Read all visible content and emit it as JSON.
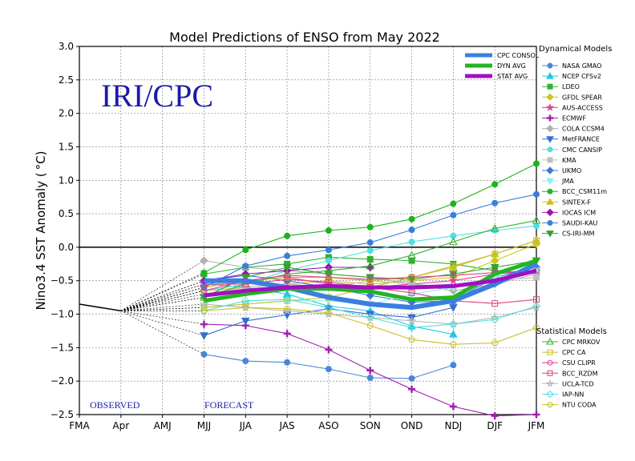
{
  "chart_data": {
    "type": "line",
    "title": "Model Predictions of ENSO from May 2022",
    "ylabel": "Nino3.4 SST Anomaly ( °C)",
    "xlabel": "",
    "categories": [
      "FMA",
      "Apr",
      "AMJ",
      "MJJ",
      "JJA",
      "JAS",
      "ASO",
      "SON",
      "OND",
      "NDJ",
      "DJF",
      "JFM"
    ],
    "ylim": [
      -2.5,
      3.0
    ],
    "yticks": [
      "3.0",
      "2.5",
      "2.0",
      "1.5",
      "1.0",
      "0.5",
      "0.0",
      "−0.5",
      "−1.0",
      "−1.5",
      "−2.0",
      "−2.5"
    ],
    "grid": true,
    "watermark": "IRI/CPC",
    "observed_label": "OBSERVED",
    "forecast_label": "FORECAST",
    "observed": [
      -0.85,
      -0.95
    ],
    "averages": [
      {
        "name": "CPC CONSOL",
        "color": "#3a7fe0",
        "values": [
          null,
          null,
          null,
          -0.5,
          -0.5,
          -0.6,
          -0.75,
          -0.85,
          -0.9,
          -0.8,
          -0.55,
          -0.25
        ]
      },
      {
        "name": "DYN AVG",
        "color": "#22b522",
        "values": [
          null,
          null,
          null,
          -0.8,
          -0.7,
          -0.62,
          -0.62,
          -0.66,
          -0.78,
          -0.75,
          -0.4,
          -0.2
        ]
      },
      {
        "name": "STAT AVG",
        "color": "#a010c0",
        "values": [
          null,
          null,
          null,
          -0.72,
          -0.65,
          -0.6,
          -0.58,
          -0.6,
          -0.6,
          -0.58,
          -0.5,
          -0.35
        ]
      }
    ],
    "legend_dynamical_title": "Dynamical Models",
    "legend_statistical_title": "Statistical Models",
    "dynamical_models": [
      {
        "name": "NASA GMAO",
        "color": "#4a86d8",
        "marker": "circle",
        "values": [
          null,
          null,
          null,
          -1.6,
          -1.7,
          -1.72,
          -1.82,
          -1.95,
          -1.96,
          -1.76,
          null,
          null
        ]
      },
      {
        "name": "NCEP CFSv2",
        "color": "#20c8e8",
        "marker": "triangle-up",
        "values": [
          null,
          null,
          null,
          -0.55,
          -0.6,
          -0.7,
          -0.88,
          -0.95,
          -1.18,
          -1.3,
          null,
          null
        ]
      },
      {
        "name": "LDEO",
        "color": "#30b030",
        "marker": "square",
        "values": [
          null,
          null,
          null,
          -0.4,
          -0.3,
          -0.25,
          -0.15,
          -0.18,
          -0.2,
          -0.25,
          -0.35,
          -0.4
        ]
      },
      {
        "name": "GFDL SPEAR",
        "color": "#c8c820",
        "marker": "diamond",
        "values": [
          null,
          null,
          null,
          -0.65,
          -0.6,
          -0.55,
          -0.5,
          -0.55,
          -0.5,
          -0.45,
          -0.2,
          0.05
        ]
      },
      {
        "name": "AUS-ACCESS",
        "color": "#e04090",
        "marker": "star",
        "values": [
          null,
          null,
          null,
          -0.6,
          -0.5,
          -0.45,
          -0.55,
          -0.6,
          -0.55,
          -0.5,
          -0.4,
          -0.35
        ]
      },
      {
        "name": "ECMWF",
        "color": "#a020b0",
        "marker": "plus",
        "values": [
          null,
          null,
          null,
          -1.15,
          -1.17,
          -1.29,
          -1.53,
          -1.84,
          -2.12,
          -2.38,
          -2.52,
          -2.5
        ]
      },
      {
        "name": "COLA CCSM4",
        "color": "#b0b0b0",
        "marker": "diamond",
        "values": [
          null,
          null,
          null,
          -0.2,
          -0.3,
          -0.35,
          -0.4,
          -0.45,
          -0.55,
          -0.65,
          -0.55,
          -0.4
        ]
      },
      {
        "name": "MetFRANCE",
        "color": "#3070d0",
        "marker": "triangle-down",
        "values": [
          null,
          null,
          null,
          -1.32,
          -1.1,
          -1.01,
          -0.92,
          -1.0,
          -1.05,
          -0.9,
          null,
          null
        ]
      },
      {
        "name": "CMC CANSIP",
        "color": "#50e0e0",
        "marker": "circle",
        "values": [
          null,
          null,
          null,
          -0.65,
          -0.55,
          -0.35,
          -0.2,
          -0.05,
          0.08,
          0.17,
          0.25,
          0.32
        ]
      },
      {
        "name": "KMA",
        "color": "#c0c0c0",
        "marker": "square",
        "values": [
          null,
          null,
          null,
          -0.7,
          -0.6,
          -0.55,
          -0.6,
          -0.5,
          -0.55,
          -0.6,
          -0.5,
          -0.45
        ]
      },
      {
        "name": "UKMO",
        "color": "#3a78d8",
        "marker": "diamond",
        "values": [
          null,
          null,
          null,
          -0.5,
          -0.42,
          -0.5,
          -0.6,
          -0.72,
          -0.82,
          -0.8,
          -0.45,
          -0.3
        ]
      },
      {
        "name": "JMA",
        "color": "#90f0f0",
        "marker": "triangle-down",
        "values": [
          null,
          null,
          null,
          -0.9,
          -0.85,
          -0.8,
          -0.8,
          -0.85,
          -0.7,
          -0.6,
          -0.45,
          -0.35
        ]
      },
      {
        "name": "BCC_CSM11m",
        "color": "#1cb41c",
        "marker": "circle",
        "values": [
          null,
          null,
          null,
          -0.38,
          -0.04,
          0.17,
          0.25,
          0.3,
          0.42,
          0.65,
          0.94,
          1.25
        ]
      },
      {
        "name": "SINTEX-F",
        "color": "#c8c020",
        "marker": "triangle-up",
        "values": [
          null,
          null,
          null,
          -0.6,
          -0.5,
          -0.45,
          -0.45,
          -0.5,
          -0.45,
          -0.3,
          -0.1,
          0.1
        ]
      },
      {
        "name": "IOCAS ICM",
        "color": "#a010b0",
        "marker": "diamond",
        "values": [
          null,
          null,
          null,
          -0.5,
          -0.4,
          -0.35,
          -0.3,
          -0.3,
          null,
          null,
          null,
          null
        ]
      },
      {
        "name": "SAUDI-KAU",
        "color": "#3a7fd8",
        "marker": "circle",
        "values": [
          null,
          null,
          null,
          -0.6,
          -0.28,
          -0.13,
          -0.04,
          0.07,
          0.26,
          0.48,
          0.66,
          0.79
        ]
      },
      {
        "name": "CS-IRI-MM",
        "color": "#30a030",
        "marker": "triangle-down",
        "values": [
          null,
          null,
          null,
          -0.75,
          -0.45,
          -0.3,
          -0.4,
          -0.45,
          -0.48,
          -0.4,
          -0.3,
          -0.2
        ]
      }
    ],
    "statistical_models": [
      {
        "name": "CPC MRKOV",
        "color": "#30b030",
        "marker": "triangle-up-open",
        "values": [
          null,
          null,
          null,
          -0.75,
          -0.55,
          -0.4,
          -0.35,
          -0.28,
          -0.12,
          0.08,
          0.28,
          0.4
        ]
      },
      {
        "name": "CPC CA",
        "color": "#c8c020",
        "marker": "square-open",
        "values": [
          null,
          null,
          null,
          -0.9,
          -0.85,
          -0.8,
          -0.75,
          -0.6,
          -0.45,
          -0.28,
          -0.1,
          0.1
        ]
      },
      {
        "name": "CSU CLIPR",
        "color": "#e04090",
        "marker": "circle-open",
        "values": [
          null,
          null,
          null,
          -0.65,
          -0.5,
          -0.42,
          -0.45,
          -0.48,
          -0.45,
          -0.42,
          -0.38,
          -0.35
        ]
      },
      {
        "name": "BCC_RZDM",
        "color": "#e04080",
        "marker": "square-open",
        "values": [
          null,
          null,
          null,
          -0.55,
          -0.55,
          -0.48,
          -0.52,
          -0.6,
          -0.68,
          -0.8,
          -0.84,
          -0.78
        ]
      },
      {
        "name": "UCLA-TCD",
        "color": "#b8b8b8",
        "marker": "star-open",
        "values": [
          null,
          null,
          null,
          -0.85,
          -0.9,
          -0.95,
          -1.0,
          -1.05,
          -1.1,
          -1.15,
          -1.05,
          -0.9
        ]
      },
      {
        "name": "IAP-NN",
        "color": "#50e0e0",
        "marker": "diamond-open",
        "values": [
          null,
          null,
          null,
          -0.95,
          -0.8,
          -0.78,
          -0.9,
          -1.05,
          -1.2,
          -1.15,
          -1.08,
          -0.88
        ]
      },
      {
        "name": "NTU CODA",
        "color": "#c8c020",
        "marker": "circle-open",
        "values": [
          null,
          null,
          null,
          -0.95,
          -0.9,
          -0.92,
          -0.98,
          -1.17,
          -1.38,
          -1.45,
          -1.43,
          -1.2
        ]
      }
    ]
  }
}
